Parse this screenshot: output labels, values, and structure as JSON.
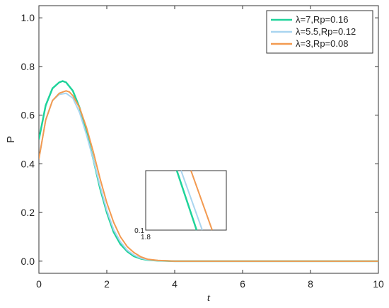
{
  "chart_data": {
    "type": "line",
    "xlabel": "t",
    "ylabel": "P",
    "xlim": [
      0,
      10
    ],
    "ylim": [
      -0.05,
      1.05
    ],
    "xticks": [
      0,
      2,
      4,
      6,
      8,
      10
    ],
    "yticks": [
      0.0,
      0.2,
      0.4,
      0.6,
      0.8,
      1.0
    ],
    "xtick_labels": [
      "0",
      "2",
      "4",
      "6",
      "8",
      "10"
    ],
    "ytick_labels": [
      "0.0",
      "0.2",
      "0.4",
      "0.6",
      "0.8",
      "1.0"
    ],
    "grid": false,
    "legend_position": "top-right",
    "series": [
      {
        "name": "λ=7,Rp=0.16",
        "color": "#1fd39a",
        "x": [
          0,
          0.2,
          0.4,
          0.6,
          0.7,
          0.8,
          1.0,
          1.2,
          1.4,
          1.6,
          1.8,
          2.0,
          2.2,
          2.4,
          2.6,
          2.8,
          3.0,
          3.2,
          3.5,
          4.0,
          5.0,
          6.0,
          8.0,
          10.0
        ],
        "y": [
          0.5,
          0.64,
          0.71,
          0.735,
          0.74,
          0.735,
          0.7,
          0.63,
          0.53,
          0.42,
          0.3,
          0.2,
          0.12,
          0.07,
          0.04,
          0.02,
          0.01,
          0.005,
          0.002,
          0.0,
          0.0,
          0.0,
          0.0,
          0.0
        ]
      },
      {
        "name": "λ=5.5,Rp=0.12",
        "color": "#a9d5f0",
        "x": [
          0,
          0.2,
          0.4,
          0.6,
          0.8,
          1.0,
          1.2,
          1.4,
          1.6,
          1.8,
          2.0,
          2.2,
          2.4,
          2.6,
          2.8,
          3.0,
          3.2,
          3.5,
          4.0,
          5.0,
          6.0,
          8.0,
          10.0
        ],
        "y": [
          0.42,
          0.58,
          0.66,
          0.685,
          0.69,
          0.67,
          0.61,
          0.52,
          0.42,
          0.31,
          0.21,
          0.13,
          0.08,
          0.045,
          0.025,
          0.012,
          0.006,
          0.002,
          0.0,
          0.0,
          0.0,
          0.0,
          0.0
        ]
      },
      {
        "name": "λ=3,Rp=0.08",
        "color": "#f39a50",
        "x": [
          0,
          0.2,
          0.4,
          0.6,
          0.8,
          0.9,
          1.0,
          1.2,
          1.4,
          1.6,
          1.8,
          2.0,
          2.2,
          2.4,
          2.6,
          2.8,
          3.0,
          3.2,
          3.5,
          4.0,
          5.0,
          6.0,
          8.0,
          10.0
        ],
        "y": [
          0.42,
          0.58,
          0.66,
          0.69,
          0.7,
          0.695,
          0.68,
          0.63,
          0.55,
          0.45,
          0.34,
          0.24,
          0.16,
          0.1,
          0.06,
          0.035,
          0.018,
          0.008,
          0.003,
          0.0,
          0.0,
          0.0,
          0.0,
          0.0
        ]
      }
    ],
    "inset": {
      "xtick_label": "1.8",
      "ytick_label": "0.1"
    }
  }
}
